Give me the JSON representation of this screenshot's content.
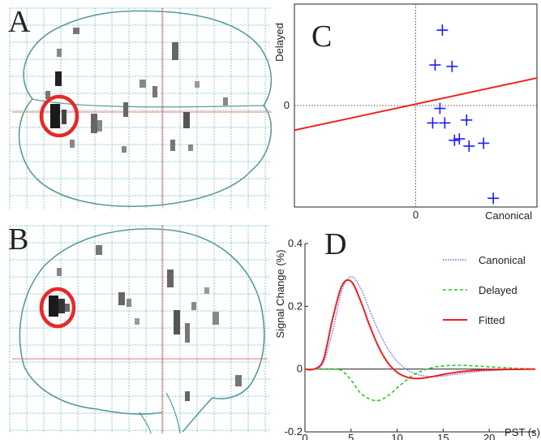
{
  "figure": {
    "panels": {
      "a": {
        "letter": "A",
        "view": "axial-glass-brain"
      },
      "b": {
        "letter": "B",
        "view": "sagittal-glass-brain"
      },
      "c": {
        "letter": "C"
      },
      "d": {
        "letter": "D"
      }
    },
    "colors": {
      "marker": "#1a1aff",
      "fit_line": "#ee2222",
      "canonical": "#6666ff",
      "delayed": "#22cc22",
      "fitted": "#ee2222",
      "grid_glass": "#8fc7c7",
      "outline": "#5a9a9a",
      "highlight_circle": "#e82828",
      "crosshair": "#e57a7a"
    }
  },
  "chart_data": [
    {
      "id": "C",
      "type": "scatter",
      "xlabel": "Canonical",
      "ylabel": "Delayed",
      "xticks": [
        {
          "v": 0,
          "label": "0"
        }
      ],
      "yticks": [
        {
          "v": 0,
          "label": "0"
        }
      ],
      "xlim": [
        -0.5,
        0.5
      ],
      "ylim": [
        -0.35,
        0.35
      ],
      "points": [
        {
          "x": 0.11,
          "y": 0.26
        },
        {
          "x": 0.08,
          "y": 0.14
        },
        {
          "x": 0.15,
          "y": 0.135
        },
        {
          "x": 0.1,
          "y": -0.01
        },
        {
          "x": 0.07,
          "y": -0.06
        },
        {
          "x": 0.12,
          "y": -0.06
        },
        {
          "x": 0.21,
          "y": -0.05
        },
        {
          "x": 0.16,
          "y": -0.12
        },
        {
          "x": 0.18,
          "y": -0.115
        },
        {
          "x": 0.22,
          "y": -0.14
        },
        {
          "x": 0.28,
          "y": -0.13
        },
        {
          "x": 0.32,
          "y": -0.32
        }
      ],
      "fit_line": {
        "x": [
          -0.5,
          0.5
        ],
        "y": [
          -0.085,
          0.095
        ]
      },
      "grid": false,
      "zero_lines": true
    },
    {
      "id": "D",
      "type": "line",
      "ylabel": "Signal Change (%)",
      "xlabel": "PST (s)",
      "xlim": [
        0,
        25
      ],
      "ylim": [
        -0.2,
        0.4
      ],
      "xticks": [
        {
          "v": 0,
          "label": "0"
        },
        {
          "v": 5,
          "label": "5"
        },
        {
          "v": 10,
          "label": "10"
        },
        {
          "v": 15,
          "label": "15"
        },
        {
          "v": 20,
          "label": "20"
        }
      ],
      "yticks": [
        {
          "v": -0.2,
          "label": "-0.2"
        },
        {
          "v": 0,
          "label": "0"
        },
        {
          "v": 0.2,
          "label": "0.2"
        },
        {
          "v": 0.4,
          "label": "0.4"
        }
      ],
      "legend": "top-right",
      "series": [
        {
          "name": "Canonical",
          "style": "dotted",
          "x": [
            0,
            1,
            2,
            3,
            4,
            5,
            6,
            7,
            8,
            9,
            10,
            11,
            12,
            13,
            14,
            15,
            16,
            17,
            18,
            19,
            20,
            22,
            25
          ],
          "y": [
            0,
            0,
            0.02,
            0.12,
            0.25,
            0.295,
            0.26,
            0.19,
            0.12,
            0.065,
            0.025,
            0,
            -0.015,
            -0.022,
            -0.024,
            -0.022,
            -0.018,
            -0.014,
            -0.01,
            -0.007,
            -0.005,
            -0.002,
            0
          ]
        },
        {
          "name": "Delayed",
          "style": "dashed",
          "x": [
            0,
            1,
            2,
            3,
            4,
            5,
            6,
            7,
            8,
            9,
            10,
            11,
            12,
            13,
            14,
            15,
            16,
            17,
            18,
            19,
            20,
            22,
            25
          ],
          "y": [
            0,
            0,
            0,
            0,
            -0.005,
            -0.035,
            -0.075,
            -0.095,
            -0.1,
            -0.085,
            -0.06,
            -0.035,
            -0.015,
            -0.002,
            0.006,
            0.01,
            0.012,
            0.012,
            0.011,
            0.009,
            0.007,
            0.004,
            0
          ]
        },
        {
          "name": "Fitted",
          "style": "solid",
          "x": [
            0,
            1,
            2,
            3,
            4,
            5,
            6,
            7,
            8,
            9,
            10,
            11,
            12,
            13,
            14,
            15,
            16,
            17,
            18,
            19,
            20,
            22,
            25
          ],
          "y": [
            0,
            0,
            0.03,
            0.16,
            0.265,
            0.28,
            0.22,
            0.14,
            0.07,
            0.02,
            -0.01,
            -0.025,
            -0.03,
            -0.028,
            -0.023,
            -0.017,
            -0.012,
            -0.008,
            -0.005,
            -0.003,
            -0.002,
            -0.001,
            0
          ]
        }
      ]
    }
  ]
}
